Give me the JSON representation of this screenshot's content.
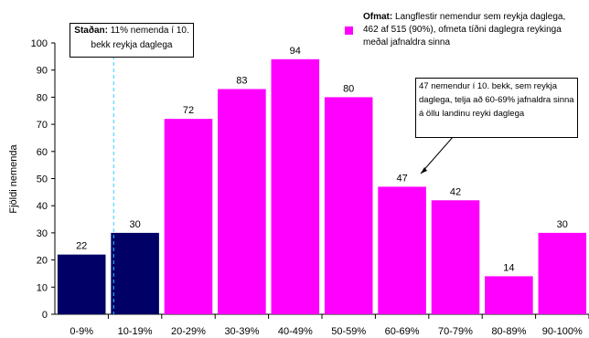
{
  "chart_data": {
    "type": "bar",
    "categories": [
      "0-9%",
      "10-19%",
      "20-29%",
      "30-39%",
      "40-49%",
      "50-59%",
      "60-69%",
      "70-79%",
      "80-89%",
      "90-100%"
    ],
    "values": [
      22,
      30,
      72,
      83,
      94,
      80,
      47,
      42,
      14,
      30
    ],
    "bar_colors": [
      "#000066",
      "#000066",
      "#ff00ff",
      "#ff00ff",
      "#ff00ff",
      "#ff00ff",
      "#ff00ff",
      "#ff00ff",
      "#ff00ff",
      "#ff00ff"
    ],
    "ylabel": "Fjöldi nemenda",
    "xlabel": "",
    "ylim": [
      0,
      100
    ],
    "yticks": [
      0,
      10,
      20,
      30,
      40,
      50,
      60,
      70,
      80,
      90,
      100
    ],
    "grid": false,
    "reference_line": {
      "x_value": 11,
      "color": "#33ccff",
      "style": "dashed"
    }
  },
  "annotations": {
    "stadan_bold": "Staðan:",
    "stadan_text": " 11% nemenda í 10. bekk reykja daglega",
    "callout_text": "47 nemendur í 10. bekk, sem reykja daglega, telja að 60-69% jafnaldra sinna á öllu landinu reyki daglega"
  },
  "legend": {
    "bold": "Ofmat:",
    "line1": " Langflestir nemendur sem reykja daglega,",
    "line2": "462 af 515 (90%), ofmeta tíðni daglegra reykinga",
    "line3": "meðal jafnaldra sinna",
    "swatch_color": "#ff00ff"
  }
}
